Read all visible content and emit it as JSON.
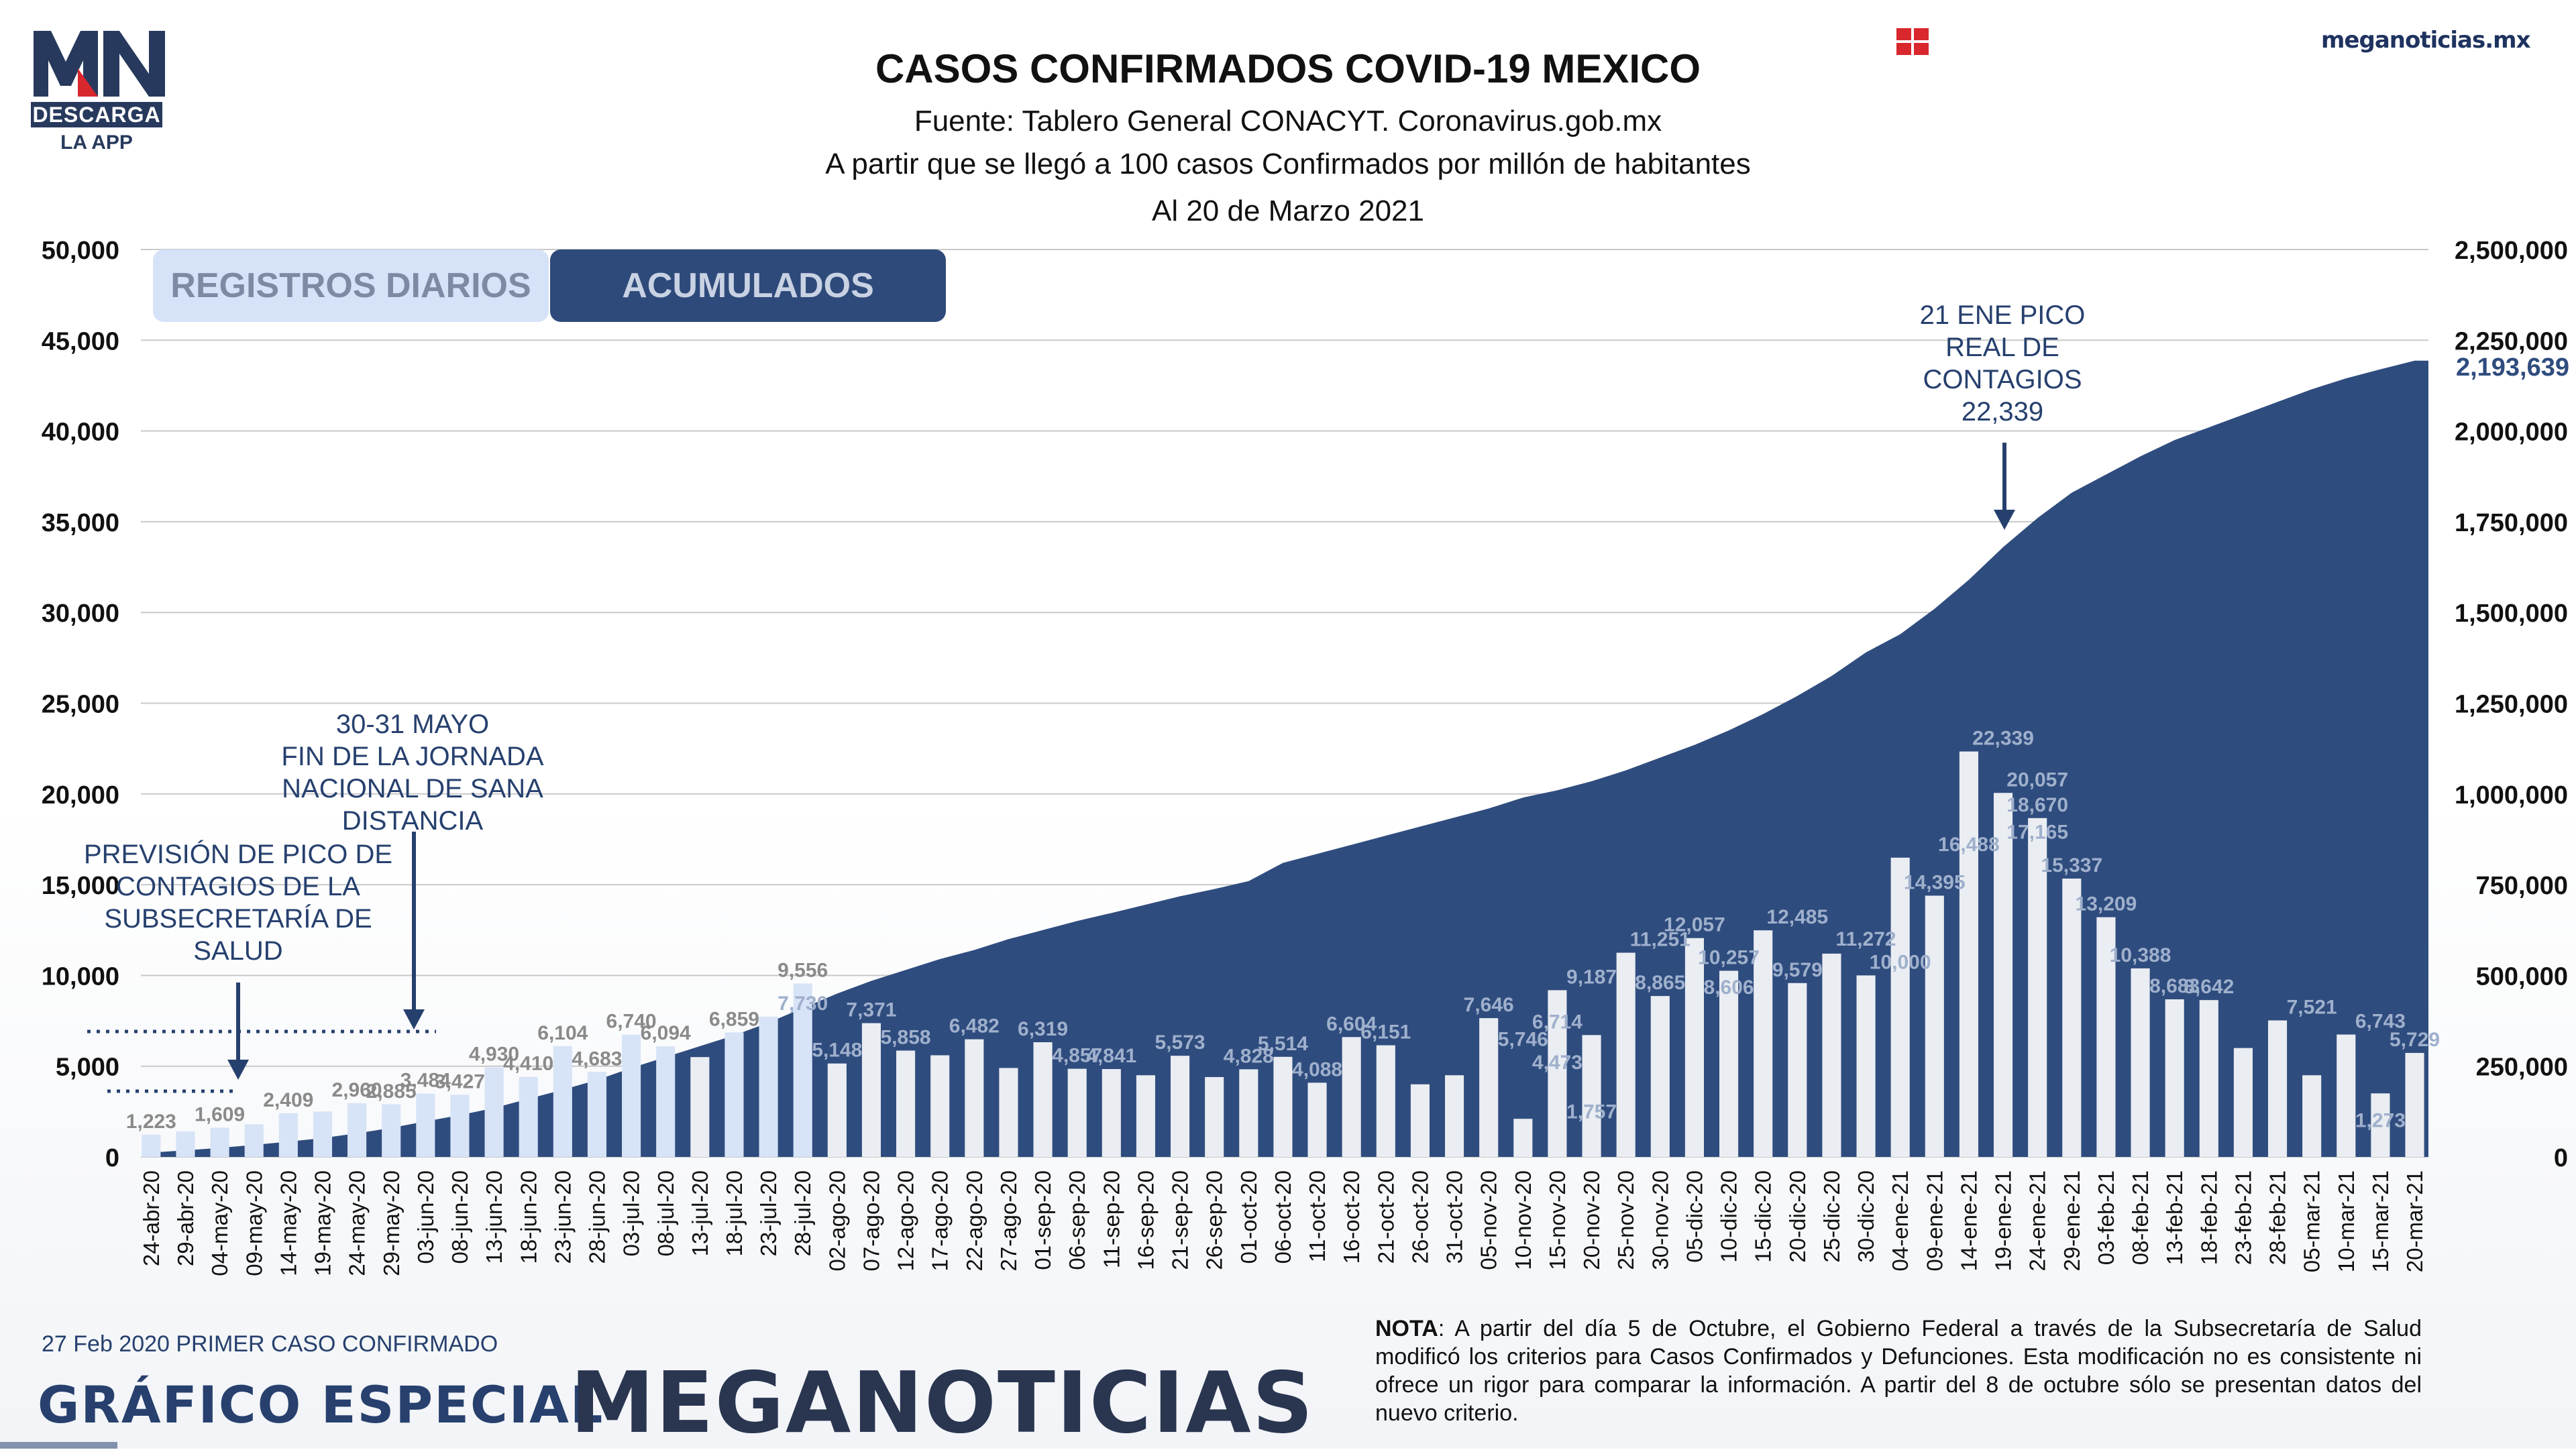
{
  "header": {
    "logo_mn": "MN",
    "logo_descarga": "DESCARGA",
    "logo_app": "LA APP",
    "site": "meganoticias.mx",
    "title": "CASOS CONFIRMADOS COVID-19 MEXICO",
    "source": "Fuente: Tablero General CONACYT. Coronavirus.gob.mx",
    "note1": "A partir que se llegó a 100 casos Confirmados por millón de habitantes",
    "date": "Al 20 de Marzo 2021"
  },
  "buttons": {
    "daily": "REGISTROS DIARIOS",
    "acumulados": "ACUMULADOS"
  },
  "annotations": {
    "pico_prevision": [
      "PREVISIÓN DE PICO DE",
      "CONTAGIOS DE LA",
      "SUBSECRETARÍA DE",
      "SALUD"
    ],
    "sana_distancia": [
      "30-31 MAYO",
      "FIN DE LA JORNADA",
      "NACIONAL DE SANA",
      "DISTANCIA"
    ],
    "pico_real": [
      "21 ENE PICO",
      "REAL DE",
      "CONTAGIOS",
      "22,339"
    ]
  },
  "footer": {
    "first_case": "27 Feb 2020 PRIMER CASO CONFIRMADO",
    "grafico": "GRÁFICO ESPECIAL",
    "brand": "MEGANOTICIAS",
    "nota_label": "NOTA",
    "nota_text": ": A partir del día 5 de Octubre, el Gobierno Federal a través de la Subsecretaría de Salud modificó los criterios para Casos Confirmados y Defunciones. Esta modificación no es consistente ni ofrece un rigor para comparar la información. A partir del 8 de octubre sólo se presentan datos del nuevo criterio."
  },
  "colors": {
    "accent": "#2e4a7a",
    "area": "#2f4c7e",
    "bar_light": "#d7e3f7",
    "bar_dark": "#ffffff",
    "label_gray": "#8a8a8a",
    "label_light": "#9fb0cc",
    "annotation": "#26406e",
    "flag_red": "#d8272d"
  },
  "chart_data": {
    "type": "bar",
    "title": "CASOS CONFIRMADOS COVID-19 MEXICO",
    "y_left": {
      "min": 0,
      "max": 50000,
      "ticks": [
        "0",
        "5,000",
        "10,000",
        "15,000",
        "20,000",
        "25,000",
        "30,000",
        "35,000",
        "40,000",
        "45,000",
        "50,000"
      ]
    },
    "y_right": {
      "min": 0,
      "max": 2500000,
      "ticks": [
        "0",
        "250,000",
        "500,000",
        "750,000",
        "1,000,000",
        "1,250,000",
        "1,500,000",
        "1,750,000",
        "2,000,000",
        "2,250,000",
        "2,500,000"
      ]
    },
    "grid": true,
    "x_tick_labels": [
      "24-abr-20",
      "29-abr-20",
      "04-may-20",
      "09-may-20",
      "14-may-20",
      "19-may-20",
      "24-may-20",
      "29-may-20",
      "03-jun-20",
      "08-jun-20",
      "13-jun-20",
      "18-jun-20",
      "23-jun-20",
      "28-jun-20",
      "03-jul-20",
      "08-jul-20",
      "13-jul-20",
      "18-jul-20",
      "23-jul-20",
      "28-jul-20",
      "02-ago-20",
      "07-ago-20",
      "12-ago-20",
      "17-ago-20",
      "22-ago-20",
      "27-ago-20",
      "01-sep-20",
      "06-sep-20",
      "11-sep-20",
      "16-sep-20",
      "21-sep-20",
      "26-sep-20",
      "01-oct-20",
      "06-oct-20",
      "11-oct-20",
      "16-oct-20",
      "21-oct-20",
      "26-oct-20",
      "31-oct-20",
      "05-nov-20",
      "10-nov-20",
      "15-nov-20",
      "20-nov-20",
      "25-nov-20",
      "30-nov-20",
      "05-dic-20",
      "10-dic-20",
      "15-dic-20",
      "20-dic-20",
      "25-dic-20",
      "30-dic-20",
      "04-ene-21",
      "09-ene-21",
      "14-ene-21",
      "19-ene-21",
      "24-ene-21",
      "29-ene-21",
      "03-feb-21",
      "08-feb-21",
      "13-feb-21",
      "18-feb-21",
      "23-feb-21",
      "28-feb-21",
      "05-mar-21",
      "10-mar-21",
      "15-mar-21",
      "20-mar-21"
    ],
    "daily_series": {
      "name": "REGISTROS DIARIOS",
      "values_per_tick": [
        1223,
        1400,
        1609,
        1800,
        2409,
        2500,
        2960,
        2900,
        3484,
        3427,
        4930,
        4410,
        6104,
        4683,
        6740,
        6094,
        5500,
        6859,
        7730,
        9556,
        5148,
        7371,
        5858,
        5600,
        6482,
        4900,
        6319,
        4857,
        4841,
        4500,
        5573,
        4400,
        4828,
        5514,
        4088,
        6604,
        6151,
        4000,
        4500,
        7646,
        2100,
        9187,
        6714,
        11251,
        8865,
        12057,
        10257,
        12485,
        9579,
        11200,
        10000,
        16488,
        14395,
        22339,
        20057,
        18670,
        15337,
        13209,
        10388,
        8683,
        8642,
        6000,
        7521,
        4500,
        6743,
        3500,
        5729
      ],
      "visible_labels": [
        "1,223",
        "1,609",
        "2,409",
        "2,960",
        "2,885",
        "3,484",
        "3,427",
        "4,930",
        "4,410",
        "6,104",
        "6,740",
        "4,683",
        "6,094",
        "6,859",
        "7,730",
        "9,556",
        "5,148",
        "7,371",
        "5,858",
        "6,482",
        "6,319",
        "4,857",
        "4,841",
        "5,573",
        "4,828",
        "5,514",
        "4,088",
        "6,604",
        "6,151",
        "7,646",
        "4,473",
        "5,746",
        "9,187",
        "6,714",
        "11,251",
        "8,865",
        "12,057",
        "10,257",
        "8,606",
        "12,485",
        "9,579",
        "11,272",
        "10,000",
        "14,395",
        "16,488",
        "22,339",
        "20,057",
        "18,670",
        "17,165",
        "15,337",
        "13,209",
        "10,388",
        "8,683",
        "8,642",
        "7,521",
        "6,743",
        "5,729",
        "1,757",
        "1,273"
      ]
    },
    "accumulated_series": {
      "name": "ACUMULADOS",
      "values_per_tick": [
        12000,
        18000,
        25000,
        33000,
        42000,
        52000,
        65000,
        80000,
        98000,
        115000,
        135000,
        160000,
        185000,
        212000,
        245000,
        275000,
        305000,
        335000,
        370000,
        410000,
        450000,
        485000,
        515000,
        545000,
        570000,
        600000,
        625000,
        650000,
        672000,
        695000,
        718000,
        738000,
        760000,
        810000,
        835000,
        860000,
        885000,
        910000,
        935000,
        960000,
        990000,
        1010000,
        1035000,
        1065000,
        1100000,
        1135000,
        1175000,
        1220000,
        1270000,
        1325000,
        1390000,
        1440000,
        1510000,
        1590000,
        1680000,
        1760000,
        1830000,
        1880000,
        1930000,
        1975000,
        2010000,
        2045000,
        2080000,
        2115000,
        2145000,
        2170000,
        2193639
      ],
      "final_label": "2,193,639"
    }
  }
}
